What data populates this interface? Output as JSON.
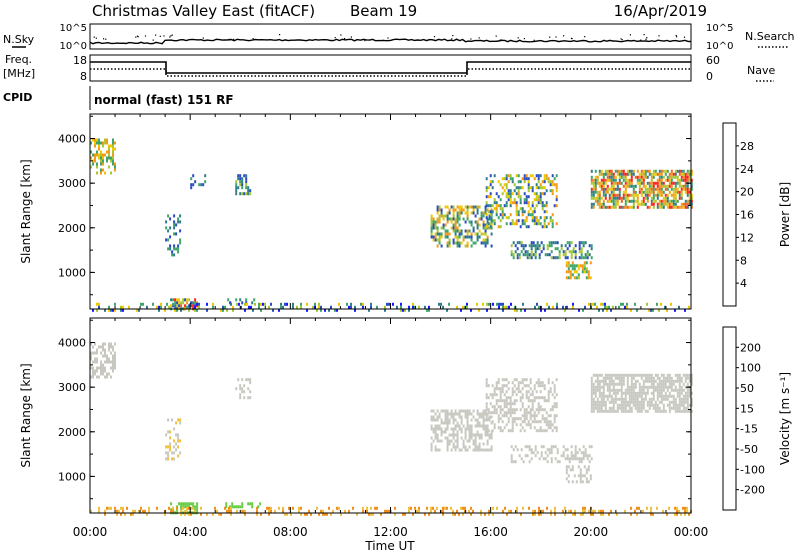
{
  "header": {
    "title": "Christmas Valley East (fitACF)",
    "beam": "Beam 19",
    "date": "16/Apr/2019"
  },
  "top_panels": {
    "nsky_label": "N.Sky",
    "nsky_ticks": [
      "10^5",
      "10^0"
    ],
    "nsearch_label": "N.Search",
    "nsearch_ticks": [
      "10^5",
      "10^0"
    ],
    "freq_label_line1": "Freq.",
    "freq_label_line2": "[MHz]",
    "freq_ticks": [
      "18",
      "8"
    ],
    "nave_label": "Nave",
    "nave_ticks": [
      "60",
      "0"
    ],
    "cpid_label": "CPID",
    "cpid_value": "normal (fast) 151 RF"
  },
  "chart_data": [
    {
      "type": "heatmap",
      "name": "power",
      "ylabel": "Slant Range [km]",
      "xlabel": "Time UT",
      "y_ticks": [
        "4000",
        "3000",
        "2000",
        "1000"
      ],
      "x_ticks": [
        "00:00",
        "04:00",
        "08:00",
        "12:00",
        "16:00",
        "20:00",
        "00:00"
      ],
      "xlim_hours": [
        0,
        24
      ],
      "ylim_km": [
        180,
        4550
      ],
      "colorbar": {
        "label": "Power [dB]",
        "ticks": [
          "28",
          "24",
          "20",
          "16",
          "12",
          "8",
          "4"
        ],
        "colors": [
          "#1a1aff",
          "#2a4cc0",
          "#2f7d8a",
          "#3fa56a",
          "#a8c832",
          "#f0c800",
          "#f29a1a",
          "#f0641e",
          "#ff1f1f"
        ]
      },
      "regions": [
        {
          "t": [
            0.0,
            1.0
          ],
          "r": [
            3200,
            4000
          ],
          "density": 0.55,
          "c": [
            3,
            6
          ]
        },
        {
          "t": [
            3.0,
            3.6
          ],
          "r": [
            1400,
            2300
          ],
          "density": 0.35,
          "c": [
            1,
            3
          ]
        },
        {
          "t": [
            4.0,
            4.6
          ],
          "r": [
            2800,
            3200
          ],
          "density": 0.35,
          "c": [
            1,
            3
          ]
        },
        {
          "t": [
            5.8,
            6.4
          ],
          "r": [
            2750,
            3200
          ],
          "density": 0.55,
          "c": [
            1,
            4
          ]
        },
        {
          "t": [
            13.6,
            16.0
          ],
          "r": [
            1600,
            2500
          ],
          "density": 0.55,
          "c": [
            1,
            6
          ]
        },
        {
          "t": [
            15.8,
            18.6
          ],
          "r": [
            2000,
            3200
          ],
          "density": 0.45,
          "c": [
            1,
            6
          ]
        },
        {
          "t": [
            16.8,
            20.0
          ],
          "r": [
            1300,
            1700
          ],
          "density": 0.5,
          "c": [
            1,
            4
          ]
        },
        {
          "t": [
            19.0,
            20.0
          ],
          "r": [
            850,
            1250
          ],
          "density": 0.55,
          "c": [
            3,
            6
          ]
        },
        {
          "t": [
            20.0,
            24.0
          ],
          "r": [
            2450,
            3300
          ],
          "density": 0.75,
          "c": [
            2,
            8
          ]
        },
        {
          "t": [
            3.2,
            4.3
          ],
          "r": [
            200,
            420
          ],
          "density": 0.7,
          "c": [
            1,
            8
          ]
        },
        {
          "t": [
            5.4,
            6.8
          ],
          "r": [
            300,
            420
          ],
          "density": 0.45,
          "c": [
            0,
            3
          ]
        },
        {
          "t": [
            0.0,
            24.0
          ],
          "r": [
            180,
            320
          ],
          "density": 0.28,
          "c": [
            0,
            5
          ]
        }
      ]
    },
    {
      "type": "heatmap",
      "name": "velocity",
      "ylabel": "Slant Range [km]",
      "xlabel": "Time UT",
      "y_ticks": [
        "4000",
        "3000",
        "2000",
        "1000"
      ],
      "x_ticks": [
        "00:00",
        "04:00",
        "08:00",
        "12:00",
        "16:00",
        "20:00",
        "00:00"
      ],
      "xlim_hours": [
        0,
        24
      ],
      "ylim_km": [
        180,
        4550
      ],
      "colorbar": {
        "label": "Velocity [m s⁻¹]",
        "ticks": [
          "200",
          "100",
          "50",
          "15",
          "-15",
          "-50",
          "-100",
          "-200"
        ],
        "colors": [
          "#2233aa",
          "#2a5e92",
          "#3a9a6a",
          "#66cc44",
          "#c8c8c0",
          "#f0c040",
          "#f0901a",
          "#f05a1a",
          "#ee1a1a"
        ]
      },
      "regions": [
        {
          "t": [
            0.0,
            1.0
          ],
          "r": [
            3200,
            4000
          ],
          "density": 0.55,
          "c": [
            4,
            4
          ]
        },
        {
          "t": [
            3.0,
            3.6
          ],
          "r": [
            1400,
            2300
          ],
          "density": 0.3,
          "c": [
            4,
            5
          ]
        },
        {
          "t": [
            5.8,
            6.4
          ],
          "r": [
            2750,
            3200
          ],
          "density": 0.45,
          "c": [
            4,
            4
          ]
        },
        {
          "t": [
            13.6,
            16.0
          ],
          "r": [
            1600,
            2500
          ],
          "density": 0.55,
          "c": [
            4,
            4
          ]
        },
        {
          "t": [
            15.8,
            18.6
          ],
          "r": [
            2000,
            3200
          ],
          "density": 0.45,
          "c": [
            4,
            4
          ]
        },
        {
          "t": [
            16.8,
            20.0
          ],
          "r": [
            1300,
            1700
          ],
          "density": 0.45,
          "c": [
            4,
            4
          ]
        },
        {
          "t": [
            19.0,
            20.0
          ],
          "r": [
            850,
            1250
          ],
          "density": 0.5,
          "c": [
            4,
            4
          ]
        },
        {
          "t": [
            20.0,
            24.0
          ],
          "r": [
            2450,
            3300
          ],
          "density": 0.75,
          "c": [
            4,
            4
          ]
        },
        {
          "t": [
            3.2,
            4.3
          ],
          "r": [
            200,
            420
          ],
          "density": 0.7,
          "c": [
            3,
            3
          ]
        },
        {
          "t": [
            5.4,
            6.8
          ],
          "r": [
            300,
            420
          ],
          "density": 0.45,
          "c": [
            3,
            3
          ]
        },
        {
          "t": [
            0.0,
            24.0
          ],
          "r": [
            180,
            320
          ],
          "density": 0.3,
          "c": [
            5,
            6
          ]
        }
      ]
    }
  ]
}
